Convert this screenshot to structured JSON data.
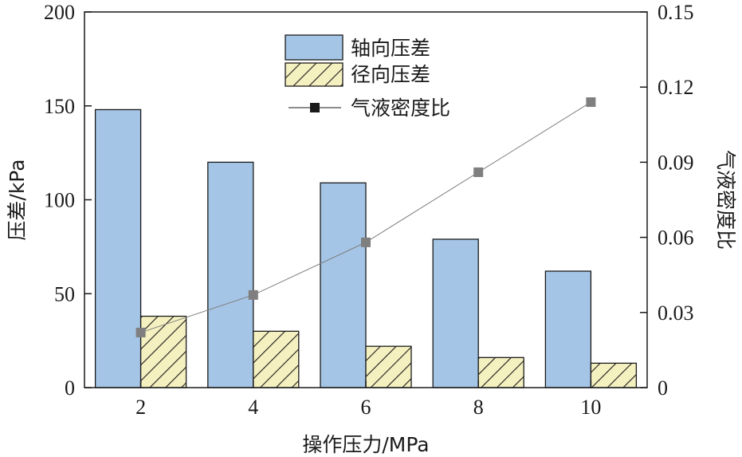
{
  "chart_data": {
    "type": "bar",
    "categories": [
      "2",
      "4",
      "6",
      "8",
      "10"
    ],
    "series": [
      {
        "name": "轴向压差",
        "kind": "bar",
        "axis": "left",
        "pattern": "solid",
        "color": "#a5c5e6",
        "values": [
          148,
          120,
          109,
          79,
          62
        ]
      },
      {
        "name": "径向压差",
        "kind": "bar",
        "axis": "left",
        "pattern": "hatch",
        "color": "#f5f0c0",
        "values": [
          38,
          30,
          22,
          16,
          13
        ]
      },
      {
        "name": "气液密度比",
        "kind": "line",
        "axis": "right",
        "marker": "square",
        "color": "#7f7f7f",
        "legend_marker_color": "#1a1a1a",
        "values": [
          0.022,
          0.037,
          0.058,
          0.086,
          0.114
        ]
      }
    ],
    "xlabel": "操作压力/MPa",
    "ylabel": "压差/kPa",
    "y2label": "气液密度比",
    "ylim": [
      0,
      200
    ],
    "y2lim": [
      0,
      0.15
    ],
    "yticks": [
      "0",
      "50",
      "100",
      "150",
      "200"
    ],
    "y2ticks": [
      "0",
      "0.03",
      "0.06",
      "0.09",
      "0.12",
      "0.15"
    ],
    "grid": false,
    "legend_position": "top-center"
  }
}
